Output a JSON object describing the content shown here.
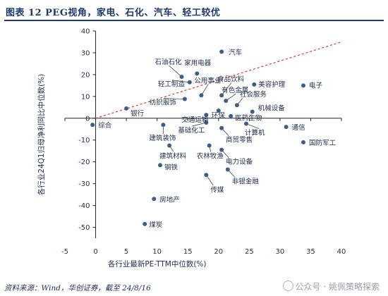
{
  "title": "图表 12 PEG视角，家电、石化、汽车、轻工较优",
  "source": "资料来源：Wind，华创证券，截至 24/8/16",
  "watermark": "公众号 · 姚佩策略探索",
  "chart_data": {
    "type": "scatter",
    "xlabel": "各行业最新PE-TTM中位数(%)",
    "ylabel": "各行业24Q1归母净利同比中位数(%)",
    "xlim": [
      -5,
      40
    ],
    "ylim": [
      -55,
      40
    ],
    "xticks": [
      -5,
      0,
      5,
      10,
      15,
      20,
      25,
      30,
      35,
      40
    ],
    "yticks": [
      -50,
      -40,
      -30,
      -20,
      -10,
      0,
      10,
      20,
      30,
      40
    ],
    "reference_line": {
      "style": "dashed",
      "color": "#d9382b",
      "from": [
        0,
        0
      ],
      "to": [
        40,
        35
      ]
    },
    "marker_color": "#3d5f86",
    "points": [
      {
        "name": "汽车",
        "x": 20.5,
        "y": 30.5
      },
      {
        "name": "家用电器",
        "x": 16.5,
        "y": 20.5
      },
      {
        "name": "石油石化",
        "x": 14.0,
        "y": 19.0
      },
      {
        "name": "轻工制造",
        "x": 15.3,
        "y": 16.5
      },
      {
        "name": "美容护理",
        "x": 25.8,
        "y": 15.5
      },
      {
        "name": "电子",
        "x": 33.8,
        "y": 15.0
      },
      {
        "name": "公用事业",
        "x": 17.2,
        "y": 10.5
      },
      {
        "name": "食品饮料",
        "x": 20.5,
        "y": 10.5
      },
      {
        "name": "纺织服饰",
        "x": 14.5,
        "y": 8.8
      },
      {
        "name": "有色金属",
        "x": 21.2,
        "y": 8.0
      },
      {
        "name": "社会服务",
        "x": 23.0,
        "y": 6.0
      },
      {
        "name": "机械设备",
        "x": 25.5,
        "y": 3.0
      },
      {
        "name": "银行",
        "x": 5.0,
        "y": 4.5
      },
      {
        "name": "交通运输",
        "x": 18.0,
        "y": 1.5
      },
      {
        "name": "环保",
        "x": 20.0,
        "y": 3.5
      },
      {
        "name": "医药生物",
        "x": 22.0,
        "y": 1.0
      },
      {
        "name": "综合",
        "x": -0.5,
        "y": -3.0
      },
      {
        "name": "基础化工",
        "x": 18.0,
        "y": -2.0
      },
      {
        "name": "建筑装饰",
        "x": 11.0,
        "y": -3.0
      },
      {
        "name": "通信",
        "x": 31.0,
        "y": -4.0
      },
      {
        "name": "计算机",
        "x": 24.5,
        "y": -2.5
      },
      {
        "name": "国防军工",
        "x": 33.8,
        "y": -11.0
      },
      {
        "name": "商贸零售",
        "x": 20.5,
        "y": -4.5
      },
      {
        "name": "建筑材料",
        "x": 12.0,
        "y": -12.5
      },
      {
        "name": "农林牧渔",
        "x": 18.5,
        "y": -12.5
      },
      {
        "name": "钢铁",
        "x": 10.5,
        "y": -21.5
      },
      {
        "name": "电力设备",
        "x": 20.5,
        "y": -14.5
      },
      {
        "name": "非银金融",
        "x": 21.5,
        "y": -23.5
      },
      {
        "name": "传媒",
        "x": 18.0,
        "y": -26.0
      },
      {
        "name": "房地产",
        "x": 9.5,
        "y": -37.0
      },
      {
        "name": "煤炭",
        "x": 8.0,
        "y": -48.5
      }
    ]
  }
}
